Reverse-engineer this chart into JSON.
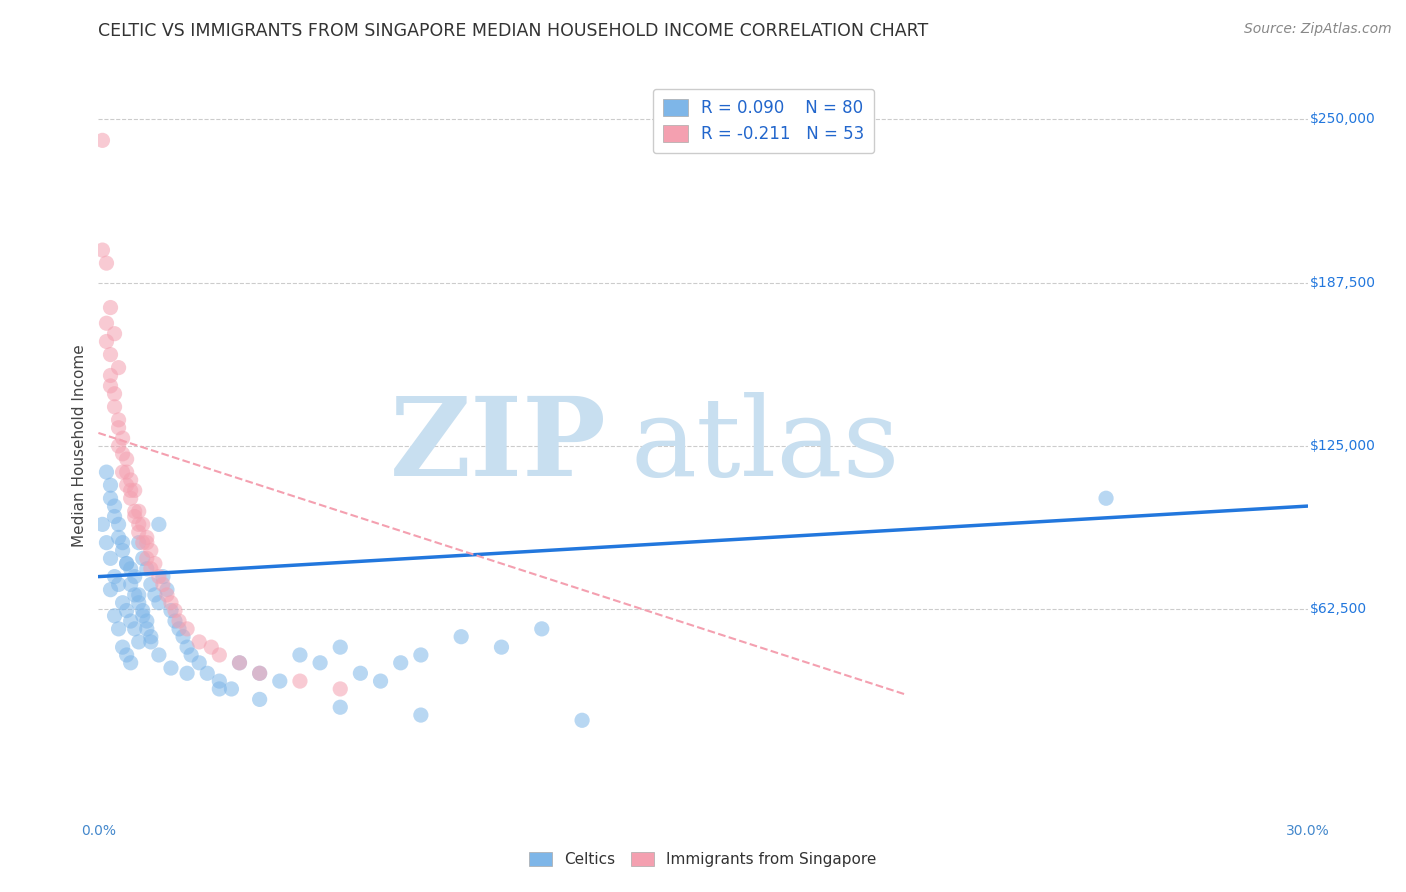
{
  "title": "CELTIC VS IMMIGRANTS FROM SINGAPORE MEDIAN HOUSEHOLD INCOME CORRELATION CHART",
  "source": "Source: ZipAtlas.com",
  "ylabel": "Median Household Income",
  "xlim": [
    0.0,
    0.3
  ],
  "ylim": [
    -15000,
    265000
  ],
  "celtics_color": "#7EB6E8",
  "immigrants_color": "#F4A0B0",
  "celtics_R": 0.09,
  "celtics_N": 80,
  "immigrants_R": -0.211,
  "immigrants_N": 53,
  "background_color": "#ffffff",
  "grid_color": "#cccccc",
  "celtics_scatter_x": [
    0.001,
    0.002,
    0.002,
    0.003,
    0.003,
    0.003,
    0.004,
    0.004,
    0.004,
    0.005,
    0.005,
    0.005,
    0.006,
    0.006,
    0.006,
    0.007,
    0.007,
    0.007,
    0.008,
    0.008,
    0.008,
    0.009,
    0.009,
    0.01,
    0.01,
    0.01,
    0.011,
    0.011,
    0.012,
    0.012,
    0.013,
    0.013,
    0.014,
    0.015,
    0.015,
    0.016,
    0.017,
    0.018,
    0.019,
    0.02,
    0.021,
    0.022,
    0.023,
    0.025,
    0.027,
    0.03,
    0.033,
    0.035,
    0.04,
    0.045,
    0.05,
    0.055,
    0.06,
    0.065,
    0.07,
    0.075,
    0.08,
    0.09,
    0.1,
    0.11,
    0.003,
    0.004,
    0.005,
    0.006,
    0.007,
    0.008,
    0.009,
    0.01,
    0.011,
    0.012,
    0.013,
    0.015,
    0.018,
    0.022,
    0.03,
    0.04,
    0.06,
    0.08,
    0.12,
    0.25
  ],
  "celtics_scatter_y": [
    95000,
    88000,
    115000,
    105000,
    82000,
    70000,
    98000,
    75000,
    60000,
    90000,
    72000,
    55000,
    85000,
    65000,
    48000,
    80000,
    62000,
    45000,
    78000,
    58000,
    42000,
    75000,
    55000,
    88000,
    68000,
    50000,
    82000,
    62000,
    78000,
    58000,
    72000,
    52000,
    68000,
    95000,
    65000,
    75000,
    70000,
    62000,
    58000,
    55000,
    52000,
    48000,
    45000,
    42000,
    38000,
    35000,
    32000,
    42000,
    38000,
    35000,
    45000,
    42000,
    48000,
    38000,
    35000,
    42000,
    45000,
    52000,
    48000,
    55000,
    110000,
    102000,
    95000,
    88000,
    80000,
    72000,
    68000,
    65000,
    60000,
    55000,
    50000,
    45000,
    40000,
    38000,
    32000,
    28000,
    25000,
    22000,
    20000,
    105000
  ],
  "immigrants_scatter_x": [
    0.001,
    0.001,
    0.002,
    0.002,
    0.003,
    0.003,
    0.003,
    0.004,
    0.004,
    0.005,
    0.005,
    0.005,
    0.006,
    0.006,
    0.007,
    0.007,
    0.008,
    0.008,
    0.009,
    0.009,
    0.01,
    0.01,
    0.011,
    0.011,
    0.012,
    0.012,
    0.013,
    0.013,
    0.014,
    0.015,
    0.016,
    0.017,
    0.018,
    0.019,
    0.02,
    0.022,
    0.025,
    0.028,
    0.03,
    0.035,
    0.04,
    0.05,
    0.06,
    0.002,
    0.003,
    0.004,
    0.005,
    0.006,
    0.007,
    0.008,
    0.009,
    0.01,
    0.012
  ],
  "immigrants_scatter_y": [
    242000,
    200000,
    195000,
    172000,
    178000,
    160000,
    148000,
    168000,
    145000,
    155000,
    135000,
    125000,
    128000,
    115000,
    120000,
    110000,
    112000,
    105000,
    108000,
    98000,
    100000,
    92000,
    95000,
    88000,
    90000,
    82000,
    85000,
    78000,
    80000,
    75000,
    72000,
    68000,
    65000,
    62000,
    58000,
    55000,
    50000,
    48000,
    45000,
    42000,
    38000,
    35000,
    32000,
    165000,
    152000,
    140000,
    132000,
    122000,
    115000,
    108000,
    100000,
    95000,
    88000
  ],
  "celtics_line_x": [
    0.0,
    0.3
  ],
  "celtics_line_y": [
    75000,
    102000
  ],
  "immigrants_line_x": [
    0.0,
    0.2
  ],
  "immigrants_line_y": [
    130000,
    30000
  ]
}
